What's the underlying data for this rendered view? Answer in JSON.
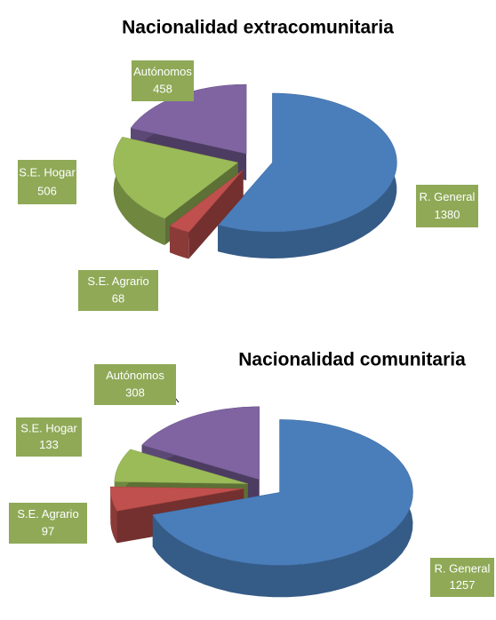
{
  "chart_data": [
    {
      "type": "pie",
      "title": "Nacionalidad extracomunitaria",
      "categories": [
        "R. General",
        "S.E. Agrario",
        "S.E. Hogar",
        "Autónomos"
      ],
      "values": [
        1380,
        68,
        506,
        458
      ],
      "colors": [
        "#4a7ebb",
        "#c0504d",
        "#9bbb59",
        "#8064a2"
      ]
    },
    {
      "type": "pie",
      "title": "Nacionalidad comunitaria",
      "categories": [
        "R. General",
        "S.E. Agrario",
        "S.E. Hogar",
        "Autónomos"
      ],
      "values": [
        1257,
        97,
        133,
        308
      ],
      "colors": [
        "#4a7ebb",
        "#c0504d",
        "#9bbb59",
        "#8064a2"
      ]
    }
  ]
}
